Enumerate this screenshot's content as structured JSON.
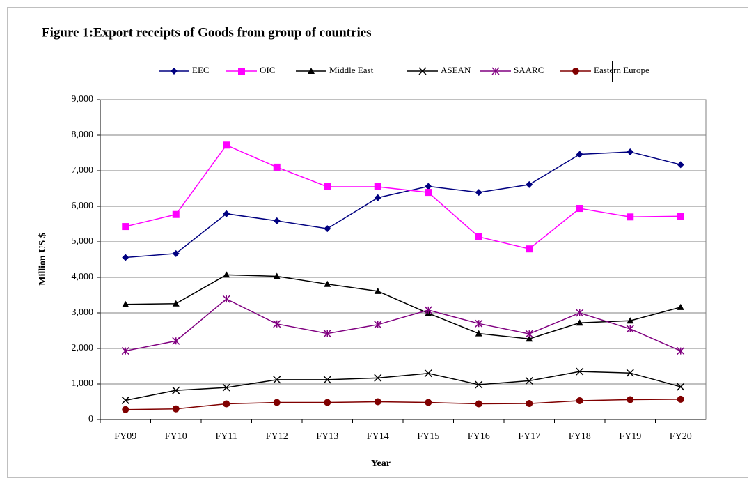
{
  "chart_data": {
    "type": "line",
    "title": "Figure 1:Export receipts of Goods from group of  countries",
    "x_label": "Year",
    "y_label": "Million US $",
    "categories": [
      "FY09",
      "FY10",
      "FY11",
      "FY12",
      "FY13",
      "FY14",
      "FY15",
      "FY16",
      "FY17",
      "FY18",
      "FY19",
      "FY20"
    ],
    "series": [
      {
        "name": "EEC",
        "color": "#000080",
        "marker": "diamond",
        "values": [
          4560,
          4670,
          5790,
          5590,
          5370,
          6240,
          6560,
          6390,
          6610,
          7460,
          7530,
          7170
        ]
      },
      {
        "name": "OIC",
        "color": "#ff00ff",
        "marker": "square",
        "values": [
          5430,
          5770,
          7720,
          7100,
          6550,
          6550,
          6390,
          5140,
          4800,
          5940,
          5700,
          5720
        ]
      },
      {
        "name": "Middle East",
        "color": "#000000",
        "marker": "triangle",
        "values": [
          3240,
          3260,
          4070,
          4030,
          3810,
          3610,
          2990,
          2420,
          2270,
          2720,
          2780,
          3160
        ]
      },
      {
        "name": "ASEAN",
        "color": "#000000",
        "marker": "x",
        "values": [
          540,
          820,
          900,
          1120,
          1120,
          1170,
          1300,
          980,
          1090,
          1350,
          1310,
          920
        ]
      },
      {
        "name": "SAARC",
        "color": "#800080",
        "marker": "asterisk",
        "values": [
          1930,
          2210,
          3390,
          2690,
          2420,
          2670,
          3080,
          2700,
          2410,
          3000,
          2550,
          1930
        ]
      },
      {
        "name": "Eastern Europe",
        "color": "#800000",
        "marker": "circle",
        "values": [
          280,
          300,
          440,
          480,
          480,
          500,
          480,
          440,
          450,
          530,
          560,
          570
        ]
      }
    ],
    "ylim": [
      0,
      9000
    ],
    "yticks": [
      0,
      {
        "value": 1000,
        "label": "1,000"
      },
      {
        "value": 2000,
        "label": "2,000"
      },
      {
        "value": 3000,
        "label": "3,000"
      },
      {
        "value": 4000,
        "label": "4,000"
      },
      {
        "value": 5000,
        "label": "5,000"
      },
      {
        "value": 6000,
        "label": "6,000"
      },
      {
        "value": 7000,
        "label": "7,000"
      },
      {
        "value": 8000,
        "label": "8,000"
      },
      {
        "value": 9000,
        "label": "9,000"
      }
    ],
    "grid": true,
    "legend": "top"
  }
}
